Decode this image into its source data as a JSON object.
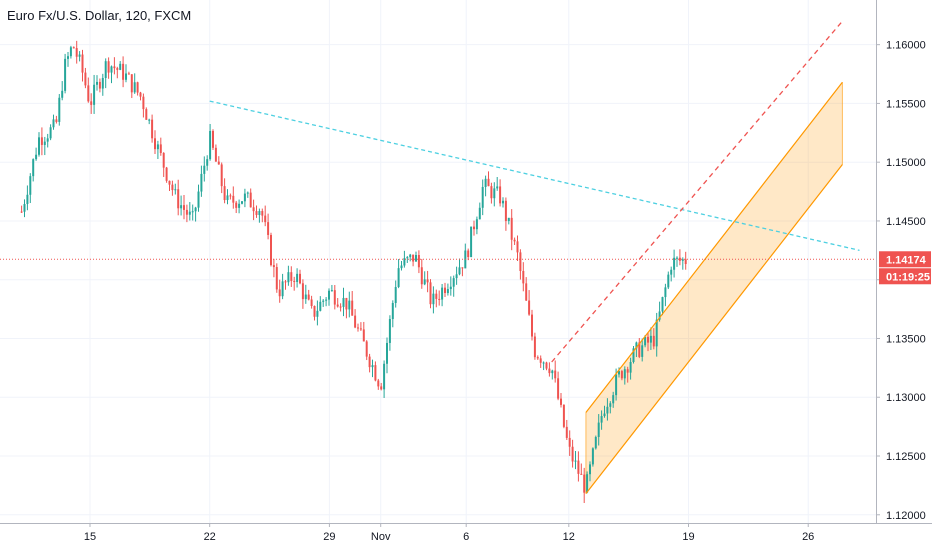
{
  "chart_data": {
    "type": "candlestick",
    "title": "Euro Fx/U.S. Dollar, 120, FXCM",
    "symbol": "Euro Fx/U.S. Dollar",
    "interval": "120",
    "exchange": "FXCM",
    "x_ticks": [
      "15",
      "22",
      "29",
      "Nov",
      "6",
      "12",
      "19",
      "26"
    ],
    "y_ticks": [
      "1.12000",
      "1.12500",
      "1.13000",
      "1.13500",
      "1.14000",
      "1.14500",
      "1.15000",
      "1.15500",
      "1.16000"
    ],
    "ylim": [
      1.1193,
      1.1638
    ],
    "grid": true,
    "last_price": "1.14174",
    "countdown": "01:19:25",
    "colors": {
      "up": "#26a69a",
      "down": "#ef5350",
      "channel": "#ff9800",
      "trend": "#4dd0e1",
      "axis": "#131722",
      "grid": "#f0f3fa"
    },
    "price_path": [
      {
        "d": "Oct 11",
        "v": 1.1458
      },
      {
        "d": "Oct 12",
        "v": 1.152
      },
      {
        "d": "Oct 13",
        "v": 1.153
      },
      {
        "d": "Oct 13.5",
        "v": 1.158
      },
      {
        "d": "Oct 14",
        "v": 1.16
      },
      {
        "d": "Oct 14.5",
        "v": 1.158
      },
      {
        "d": "Oct 15",
        "v": 1.155
      },
      {
        "d": "Oct 16",
        "v": 1.1585
      },
      {
        "d": "Oct 17",
        "v": 1.1575
      },
      {
        "d": "Oct 18",
        "v": 1.1555
      },
      {
        "d": "Oct 19",
        "v": 1.151
      },
      {
        "d": "Oct 20",
        "v": 1.147
      },
      {
        "d": "Oct 21",
        "v": 1.145
      },
      {
        "d": "Oct 22",
        "v": 1.152
      },
      {
        "d": "Oct 23",
        "v": 1.1465
      },
      {
        "d": "Oct 24",
        "v": 1.147
      },
      {
        "d": "Oct 25",
        "v": 1.146
      },
      {
        "d": "Oct 26",
        "v": 1.139
      },
      {
        "d": "Oct 27",
        "v": 1.1405
      },
      {
        "d": "Oct 28",
        "v": 1.137
      },
      {
        "d": "Oct 29",
        "v": 1.139
      },
      {
        "d": "Oct 30",
        "v": 1.138
      },
      {
        "d": "Oct 31",
        "v": 1.1345
      },
      {
        "d": "Nov 1",
        "v": 1.131
      },
      {
        "d": "Nov 2",
        "v": 1.141
      },
      {
        "d": "Nov 3",
        "v": 1.142
      },
      {
        "d": "Nov 4",
        "v": 1.138
      },
      {
        "d": "Nov 5",
        "v": 1.14
      },
      {
        "d": "Nov 6",
        "v": 1.142
      },
      {
        "d": "Nov 7",
        "v": 1.148
      },
      {
        "d": "Nov 8",
        "v": 1.147
      },
      {
        "d": "Nov 9",
        "v": 1.142
      },
      {
        "d": "Nov 10",
        "v": 1.134
      },
      {
        "d": "Nov 11",
        "v": 1.1325
      },
      {
        "d": "Nov 12",
        "v": 1.1255
      },
      {
        "d": "Nov 13",
        "v": 1.1222
      },
      {
        "d": "Nov 14",
        "v": 1.129
      },
      {
        "d": "Nov 15",
        "v": 1.132
      },
      {
        "d": "Nov 16",
        "v": 1.134
      },
      {
        "d": "Nov 17",
        "v": 1.135
      },
      {
        "d": "Nov 18",
        "v": 1.1415
      },
      {
        "d": "Nov 19",
        "v": 1.1417
      }
    ],
    "drawings": {
      "trend_line": {
        "from": {
          "d": "Oct 22",
          "v": 1.1552
        },
        "to": {
          "d": "Nov 29",
          "v": 1.1425
        }
      },
      "projection_line": {
        "from": {
          "d": "Nov 11",
          "v": 1.133
        },
        "to": {
          "d": "Nov 28",
          "v": 1.162
        }
      },
      "channel_upper": {
        "from": {
          "d": "Nov 13",
          "v": 1.1287
        },
        "to": {
          "d": "Nov 28",
          "v": 1.1568
        }
      },
      "channel_lower": {
        "from": {
          "d": "Nov 13",
          "v": 1.1218
        },
        "to": {
          "d": "Nov 28",
          "v": 1.1498
        }
      },
      "channel_fill": {
        "from": "Nov 13",
        "to": "Nov 28"
      }
    }
  }
}
